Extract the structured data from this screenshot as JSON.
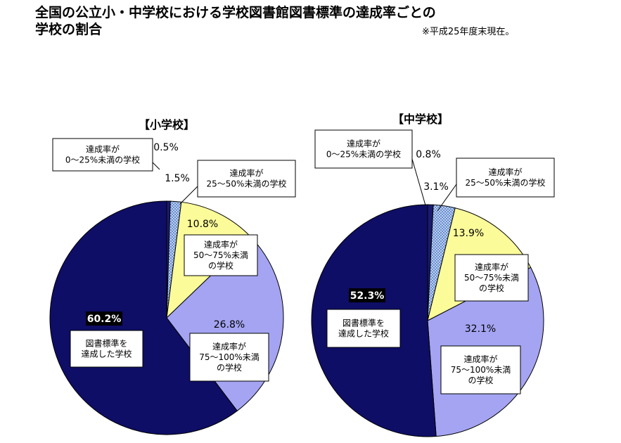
{
  "header": {
    "title_line1": "全国の公立小・中学校における学校図書館図書標準の達成率ごとの",
    "title_line2": "学校の割合",
    "note": "※平成25年度末現在。"
  },
  "colors": {
    "s0": "#1a1a6e",
    "s1": "#8fb4e8",
    "s2": "#fbfb9a",
    "s3": "#a4a4f2",
    "s4": "#0e0e66"
  },
  "chart_data": [
    {
      "type": "pie",
      "title": "【小学校】",
      "series": [
        {
          "name": "達成率が\n0～25%未満の学校",
          "value": 0.5,
          "label": "0.5%"
        },
        {
          "name": "達成率が\n25～50%未満の学校",
          "value": 1.5,
          "label": "1.5%"
        },
        {
          "name": "達成率が\n50～75%未満\nの学校",
          "value": 10.8,
          "label": "10.8%"
        },
        {
          "name": "達成率が\n75～100%未満\nの学校",
          "value": 26.8,
          "label": "26.8%"
        },
        {
          "name": "図書標準を\n達成した学校",
          "value": 60.2,
          "label": "60.2%"
        }
      ]
    },
    {
      "type": "pie",
      "title": "【中学校】",
      "series": [
        {
          "name": "達成率が\n0～25%未満の学校",
          "value": 0.8,
          "label": "0.8%"
        },
        {
          "name": "達成率が\n25～50%未満の学校",
          "value": 3.1,
          "label": "3.1%"
        },
        {
          "name": "達成率が\n50～75%未満\nの学校",
          "value": 13.9,
          "label": "13.9%"
        },
        {
          "name": "達成率が\n75～100%未満\nの学校",
          "value": 32.1,
          "label": "32.1%"
        },
        {
          "name": "図書標準を\n達成した学校",
          "value": 52.3,
          "label": "52.3%"
        }
      ]
    }
  ]
}
